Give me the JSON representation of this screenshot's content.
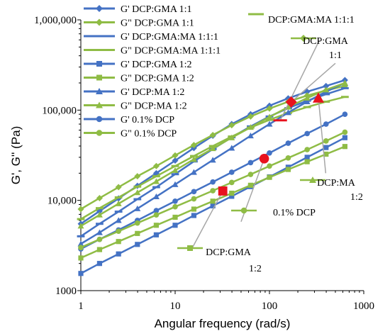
{
  "chart_data": {
    "type": "line",
    "title": "",
    "xlabel": "Angular frequency (rad/s)",
    "ylabel": "G', G'' (Pa)",
    "x_scale": "log",
    "y_scale": "log",
    "xlim": [
      1,
      1000
    ],
    "ylim": [
      1000,
      1000000
    ],
    "x_ticks": [
      "1",
      "10",
      "100",
      "1000"
    ],
    "y_ticks": [
      "1000",
      "10,000",
      "100,000",
      "1,000,000"
    ],
    "grid": false,
    "legend_position": "top-left",
    "x": [
      1,
      1.58,
      2.51,
      3.98,
      6.31,
      10,
      15.8,
      25.1,
      39.8,
      63.1,
      100,
      158,
      251,
      398,
      631
    ],
    "series": [
      {
        "name": "G' DCP:GMA 1:1",
        "color": "#4472c4",
        "marker": "diamond",
        "values": [
          5500,
          7600,
          10500,
          14500,
          20000,
          27600,
          38000,
          52000,
          70000,
          90000,
          112000,
          135000,
          160000,
          185000,
          215000
        ]
      },
      {
        "name": "G\" DCP:GMA 1:1",
        "color": "#8fbc45",
        "marker": "diamond",
        "values": [
          8000,
          10600,
          14000,
          18500,
          24000,
          31500,
          41000,
          53000,
          68000,
          85000,
          104000,
          124000,
          145000,
          165000,
          185000
        ]
      },
      {
        "name": "G' DCP:GMA:MA 1:1:1",
        "color": "#4472c4",
        "marker": "dash",
        "values": [
          4000,
          5500,
          7500,
          10300,
          14000,
          19500,
          27000,
          37000,
          50000,
          66000,
          85000,
          105000,
          127000,
          150000,
          175000
        ]
      },
      {
        "name": "G\" DCP:GMA:MA 1:1:1",
        "color": "#8fbc45",
        "marker": "dash",
        "values": [
          6200,
          8200,
          10800,
          14200,
          18500,
          24000,
          31000,
          40000,
          51000,
          64000,
          78000,
          93000,
          108000,
          124000,
          140000
        ]
      },
      {
        "name": "G' DCP:GMA 1:2",
        "color": "#4472c4",
        "marker": "square",
        "values": [
          1550,
          2000,
          2550,
          3250,
          4150,
          5300,
          6800,
          8700,
          11100,
          14200,
          18200,
          23300,
          30000,
          38500,
          49500
        ]
      },
      {
        "name": "G\" DCP:GMA 1:2",
        "color": "#8fbc45",
        "marker": "square",
        "values": [
          2300,
          2850,
          3500,
          4300,
          5300,
          6500,
          8000,
          9800,
          12000,
          14700,
          18000,
          22000,
          26800,
          32500,
          39500
        ]
      },
      {
        "name": "G' DCP:MA 1:2",
        "color": "#4472c4",
        "marker": "triangle",
        "values": [
          3300,
          4400,
          6000,
          8100,
          11000,
          15000,
          20500,
          28000,
          38000,
          52000,
          70000,
          94000,
          124000,
          160000,
          200000
        ]
      },
      {
        "name": "G\" DCP:MA 1:2",
        "color": "#8fbc45",
        "marker": "triangle",
        "values": [
          5200,
          6900,
          9200,
          12200,
          16200,
          21500,
          28500,
          37500,
          49500,
          64500,
          84000,
          108000,
          136000,
          168000,
          200000
        ]
      },
      {
        "name": "G' 0.1% DCP",
        "color": "#4472c4",
        "marker": "circle",
        "values": [
          2900,
          3700,
          4700,
          6000,
          7700,
          9800,
          12500,
          16000,
          20500,
          26200,
          33500,
          43000,
          55000,
          70000,
          90000
        ]
      },
      {
        "name": "G\" 0.1% DCP",
        "color": "#8fbc45",
        "marker": "circle",
        "values": [
          3000,
          3700,
          4550,
          5600,
          6900,
          8500,
          10400,
          12800,
          15800,
          19400,
          24000,
          29500,
          36500,
          45500,
          57000
        ]
      }
    ],
    "highlights": [
      {
        "x": 32,
        "y": 12700,
        "marker": "square",
        "color": "#e8121e"
      },
      {
        "x": 88,
        "y": 29000,
        "marker": "circle",
        "color": "#e8121e"
      },
      {
        "x": 130,
        "y": 77000,
        "marker": "dash",
        "color": "#e8121e"
      },
      {
        "x": 170,
        "y": 123000,
        "marker": "diamond",
        "color": "#e8121e"
      },
      {
        "x": 330,
        "y": 136000,
        "marker": "triangle",
        "color": "#e8121e"
      }
    ],
    "annotations": [
      {
        "id": "gma-ma",
        "text": "DCP:GMA:MA 1:1:1",
        "marker": "dash",
        "leader_from": [
          130,
          77000
        ],
        "leader_to": [
          340,
          600000
        ]
      },
      {
        "id": "gma11",
        "text_lines": [
          "DCP:GMA",
          "1:1"
        ],
        "marker": "diamond",
        "leader_from": [
          170,
          123000
        ],
        "leader_to": [
          500,
          330000
        ]
      },
      {
        "id": "ma12",
        "text_lines": [
          "DCP:MA",
          "1:2"
        ],
        "marker": "triangle",
        "leader_from": [
          330,
          136000
        ],
        "leader_to": [
          395,
          20000
        ]
      },
      {
        "id": "dcp01",
        "text": "0.1% DCP",
        "marker": "circle",
        "leader_from": [
          88,
          29000
        ],
        "leader_to": [
          50,
          5800
        ]
      },
      {
        "id": "gma12",
        "text_lines": [
          "DCP:GMA",
          "1:2"
        ],
        "marker": "square",
        "leader_from": [
          32,
          12700
        ],
        "leader_to": [
          15,
          2900
        ]
      }
    ]
  }
}
